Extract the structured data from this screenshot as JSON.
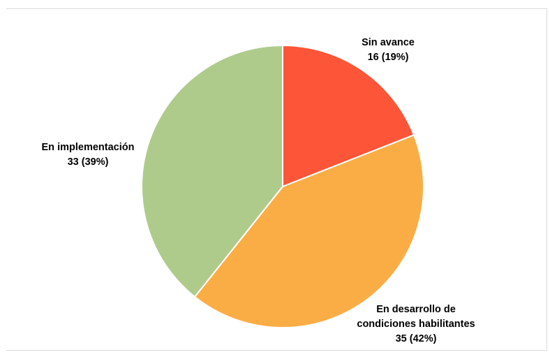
{
  "chart_data": {
    "type": "pie",
    "title": "",
    "slices": [
      {
        "category": "Sin avance",
        "value": 16,
        "percent": "19%",
        "value_label": "16 (19%)",
        "color": "#fc5538"
      },
      {
        "category": "En desarrollo de condiciones habilitantes",
        "category_lines": [
          "En desarrollo de",
          "condiciones habilitantes"
        ],
        "value": 35,
        "percent": "42%",
        "value_label": "35 (42%)",
        "color": "#fbad45"
      },
      {
        "category": "En implementación",
        "value": 33,
        "percent": "39%",
        "value_label": "33 (39%)",
        "color": "#aecb8c"
      }
    ],
    "start_angle": "12 o'clock",
    "direction": "clockwise",
    "legend": "none"
  }
}
